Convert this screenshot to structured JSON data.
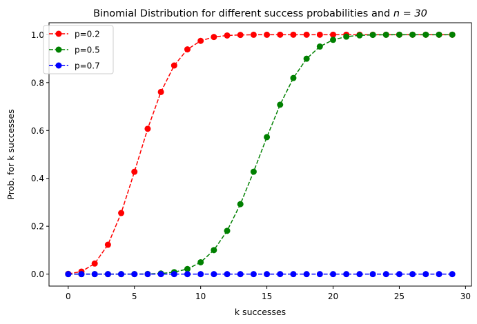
{
  "chart_data": {
    "type": "line",
    "title": "Binomial Distribution for different success probabilities and",
    "title_math": "n = 30",
    "xlabel": "k successes",
    "ylabel": "Prob. for k successes",
    "xlim": [
      -1.45,
      30.45
    ],
    "ylim": [
      -0.05,
      1.05
    ],
    "xticks": [
      0,
      5,
      10,
      15,
      20,
      25,
      30
    ],
    "xtick_labels": [
      "0",
      "5",
      "10",
      "15",
      "20",
      "25",
      "30"
    ],
    "yticks": [
      0.0,
      0.2,
      0.4,
      0.6,
      0.8,
      1.0
    ],
    "ytick_labels": [
      "0.0",
      "0.2",
      "0.4",
      "0.6",
      "0.8",
      "1.0"
    ],
    "grid": false,
    "legend_position": "top-left",
    "x": [
      0,
      1,
      2,
      3,
      4,
      5,
      6,
      7,
      8,
      9,
      10,
      11,
      12,
      13,
      14,
      15,
      16,
      17,
      18,
      19,
      20,
      21,
      22,
      23,
      24,
      25,
      26,
      27,
      28,
      29
    ],
    "series": [
      {
        "name": "p=0.2",
        "color": "#ff0000",
        "line_style": "dashed",
        "marker": "circle",
        "values": [
          0.0012,
          0.0105,
          0.0442,
          0.1227,
          0.2552,
          0.4275,
          0.607,
          0.7608,
          0.8713,
          0.9389,
          0.9744,
          0.9905,
          0.9969,
          0.9991,
          0.9998,
          0.9999,
          1.0,
          1.0,
          1.0,
          1.0,
          1.0,
          1.0,
          1.0,
          1.0,
          1.0,
          1.0,
          1.0,
          1.0,
          1.0,
          1.0
        ]
      },
      {
        "name": "p=0.5",
        "color": "#008000",
        "line_style": "dashed",
        "marker": "circle",
        "values": [
          0.0,
          0.0,
          0.0,
          0.0,
          0.0,
          0.0002,
          0.0007,
          0.0026,
          0.0081,
          0.0214,
          0.0494,
          0.1002,
          0.1808,
          0.2923,
          0.4278,
          0.5722,
          0.7077,
          0.8192,
          0.8998,
          0.9506,
          0.9786,
          0.9919,
          0.9974,
          0.9993,
          0.9998,
          1.0,
          1.0,
          1.0,
          1.0,
          1.0
        ]
      },
      {
        "name": "p=0.7",
        "color": "#0000ff",
        "line_style": "dashed",
        "marker": "circle",
        "values": [
          0.0,
          0.0,
          0.0,
          0.0,
          0.0,
          0.0,
          0.0,
          0.0,
          0.0,
          0.0,
          0.0,
          0.0,
          0.0,
          0.0,
          0.0,
          0.0,
          0.0002,
          0.0,
          0.0,
          0.0,
          0.0,
          0.0,
          0.0,
          0.0,
          0.0,
          0.0,
          0.0,
          0.0,
          0.0,
          0.0
        ]
      }
    ]
  }
}
